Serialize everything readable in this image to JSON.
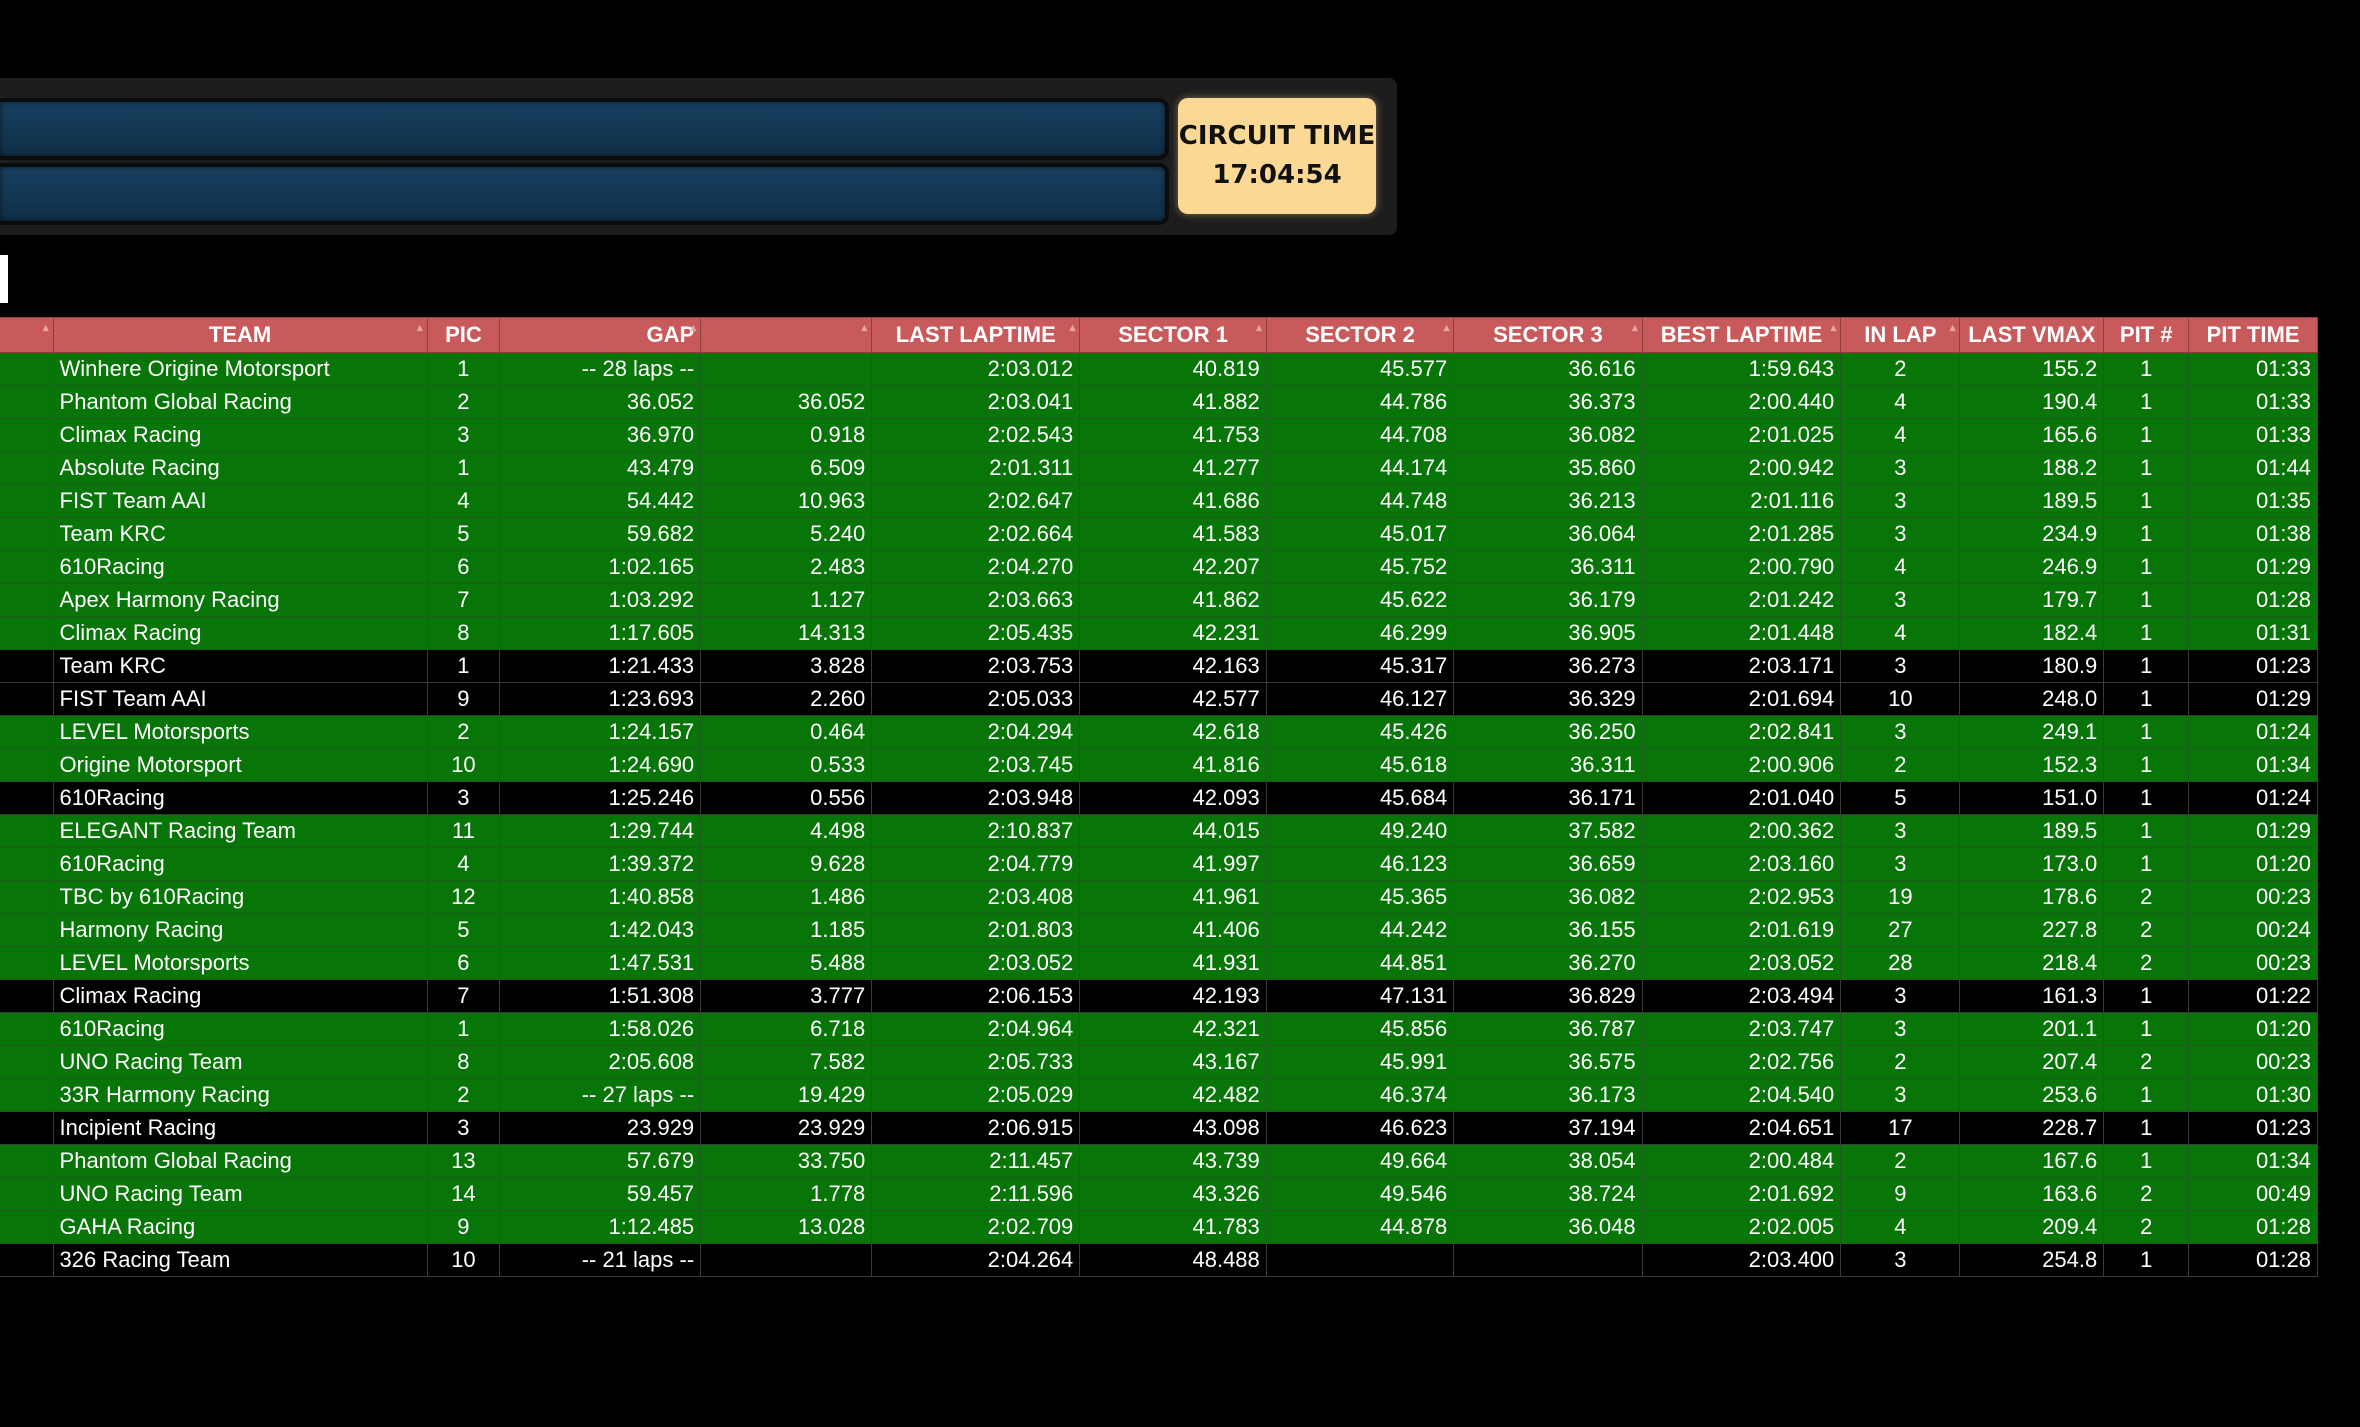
{
  "header": {
    "circuit_time_label": "CIRCUIT TIME",
    "circuit_time_value": "17:04:54"
  },
  "colors": {
    "header_bg": "#c85a5c",
    "row_green": "#087508",
    "row_black": "#000000",
    "fastest_text": "#45e045",
    "circuit_box": "#fcd895",
    "bar_blue": "#17405f"
  },
  "icons": {
    "sort": "sort-icon"
  },
  "table": {
    "columns": [
      "",
      "TEAM",
      "PIC",
      "GAP",
      "",
      "LAST LAPTIME",
      "SECTOR 1",
      "SECTOR 2",
      "SECTOR 3",
      "BEST LAPTIME",
      "IN LAP",
      "LAST VMAX",
      "PIT #",
      "PIT TIME"
    ],
    "rows": [
      {
        "team": "Winhere Origine Motorsport",
        "pic": "1",
        "gap": "-- 28 laps --",
        "int": "",
        "last": "2:03.012",
        "s1": "40.819",
        "s2": "45.577",
        "s3": "36.616",
        "best": "1:59.643",
        "inlap": "2",
        "vmax": "155.2",
        "pits": "1",
        "pittime": "01:33",
        "bg": "green"
      },
      {
        "team": "Phantom Global Racing",
        "pic": "2",
        "gap": "36.052",
        "int": "36.052",
        "last": "2:03.041",
        "s1": "41.882",
        "s2": "44.786",
        "s3": "36.373",
        "best": "2:00.440",
        "inlap": "4",
        "vmax": "190.4",
        "pits": "1",
        "pittime": "01:33",
        "bg": "green"
      },
      {
        "team": "Climax Racing",
        "pic": "3",
        "gap": "36.970",
        "int": "0.918",
        "last": "2:02.543",
        "s1": "41.753",
        "s2": "44.708",
        "s3": "36.082",
        "best": "2:01.025",
        "inlap": "4",
        "vmax": "165.6",
        "pits": "1",
        "pittime": "01:33",
        "bg": "green"
      },
      {
        "team": "Absolute Racing",
        "pic": "1",
        "gap": "43.479",
        "int": "6.509",
        "last": "2:01.311",
        "s1": "41.277",
        "s2": "44.174",
        "s3": "35.860",
        "best": "2:00.942",
        "inlap": "3",
        "vmax": "188.2",
        "pits": "1",
        "pittime": "01:44",
        "bg": "green",
        "hl": [
          "s2"
        ]
      },
      {
        "team": "FIST Team AAI",
        "pic": "4",
        "gap": "54.442",
        "int": "10.963",
        "last": "2:02.647",
        "s1": "41.686",
        "s2": "44.748",
        "s3": "36.213",
        "best": "2:01.116",
        "inlap": "3",
        "vmax": "189.5",
        "pits": "1",
        "pittime": "01:35",
        "bg": "green"
      },
      {
        "team": "Team KRC",
        "pic": "5",
        "gap": "59.682",
        "int": "5.240",
        "last": "2:02.664",
        "s1": "41.583",
        "s2": "45.017",
        "s3": "36.064",
        "best": "2:01.285",
        "inlap": "3",
        "vmax": "234.9",
        "pits": "1",
        "pittime": "01:38",
        "bg": "green"
      },
      {
        "team": "610Racing",
        "pic": "6",
        "gap": "1:02.165",
        "int": "2.483",
        "last": "2:04.270",
        "s1": "42.207",
        "s2": "45.752",
        "s3": "36.311",
        "best": "2:00.790",
        "inlap": "4",
        "vmax": "246.9",
        "pits": "1",
        "pittime": "01:29",
        "bg": "green"
      },
      {
        "team": "Apex Harmony Racing",
        "pic": "7",
        "gap": "1:03.292",
        "int": "1.127",
        "last": "2:03.663",
        "s1": "41.862",
        "s2": "45.622",
        "s3": "36.179",
        "best": "2:01.242",
        "inlap": "3",
        "vmax": "179.7",
        "pits": "1",
        "pittime": "01:28",
        "bg": "green"
      },
      {
        "team": "Climax Racing",
        "pic": "8",
        "gap": "1:17.605",
        "int": "14.313",
        "last": "2:05.435",
        "s1": "42.231",
        "s2": "46.299",
        "s3": "36.905",
        "best": "2:01.448",
        "inlap": "4",
        "vmax": "182.4",
        "pits": "1",
        "pittime": "01:31",
        "bg": "green"
      },
      {
        "team": "Team KRC",
        "pic": "1",
        "gap": "1:21.433",
        "int": "3.828",
        "last": "2:03.753",
        "s1": "42.163",
        "s2": "45.317",
        "s3": "36.273",
        "best": "2:03.171",
        "inlap": "3",
        "vmax": "180.9",
        "pits": "1",
        "pittime": "01:23",
        "bg": "black"
      },
      {
        "team": "FIST Team AAI",
        "pic": "9",
        "gap": "1:23.693",
        "int": "2.260",
        "last": "2:05.033",
        "s1": "42.577",
        "s2": "46.127",
        "s3": "36.329",
        "best": "2:01.694",
        "inlap": "10",
        "vmax": "248.0",
        "pits": "1",
        "pittime": "01:29",
        "bg": "black"
      },
      {
        "team": "LEVEL Motorsports",
        "pic": "2",
        "gap": "1:24.157",
        "int": "0.464",
        "last": "2:04.294",
        "s1": "42.618",
        "s2": "45.426",
        "s3": "36.250",
        "best": "2:02.841",
        "inlap": "3",
        "vmax": "249.1",
        "pits": "1",
        "pittime": "01:24",
        "bg": "green"
      },
      {
        "team": "Origine Motorsport",
        "pic": "10",
        "gap": "1:24.690",
        "int": "0.533",
        "last": "2:03.745",
        "s1": "41.816",
        "s2": "45.618",
        "s3": "36.311",
        "best": "2:00.906",
        "inlap": "2",
        "vmax": "152.3",
        "pits": "1",
        "pittime": "01:34",
        "bg": "green"
      },
      {
        "team": "610Racing",
        "pic": "3",
        "gap": "1:25.246",
        "int": "0.556",
        "last": "2:03.948",
        "s1": "42.093",
        "s2": "45.684",
        "s3": "36.171",
        "best": "2:01.040",
        "inlap": "5",
        "vmax": "151.0",
        "pits": "1",
        "pittime": "01:24",
        "bg": "black"
      },
      {
        "team": "ELEGANT Racing Team",
        "pic": "11",
        "gap": "1:29.744",
        "int": "4.498",
        "last": "2:10.837",
        "s1": "44.015",
        "s2": "49.240",
        "s3": "37.582",
        "best": "2:00.362",
        "inlap": "3",
        "vmax": "189.5",
        "pits": "1",
        "pittime": "01:29",
        "bg": "green"
      },
      {
        "team": "610Racing",
        "pic": "4",
        "gap": "1:39.372",
        "int": "9.628",
        "last": "2:04.779",
        "s1": "41.997",
        "s2": "46.123",
        "s3": "36.659",
        "best": "2:03.160",
        "inlap": "3",
        "vmax": "173.0",
        "pits": "1",
        "pittime": "01:20",
        "bg": "green"
      },
      {
        "team": "TBC by 610Racing",
        "pic": "12",
        "gap": "1:40.858",
        "int": "1.486",
        "last": "2:03.408",
        "s1": "41.961",
        "s2": "45.365",
        "s3": "36.082",
        "best": "2:02.953",
        "inlap": "19",
        "vmax": "178.6",
        "pits": "2",
        "pittime": "00:23",
        "bg": "green"
      },
      {
        "team": "Harmony Racing",
        "pic": "5",
        "gap": "1:42.043",
        "int": "1.185",
        "last": "2:01.803",
        "s1": "41.406",
        "s2": "44.242",
        "s3": "36.155",
        "best": "2:01.619",
        "inlap": "27",
        "vmax": "227.8",
        "pits": "2",
        "pittime": "00:24",
        "bg": "green",
        "hl": [
          "s1",
          "s2"
        ]
      },
      {
        "team": "LEVEL Motorsports",
        "pic": "6",
        "gap": "1:47.531",
        "int": "5.488",
        "last": "2:03.052",
        "s1": "41.931",
        "s2": "44.851",
        "s3": "36.270",
        "best": "2:03.052",
        "inlap": "28",
        "vmax": "218.4",
        "pits": "2",
        "pittime": "00:23",
        "bg": "green",
        "hl": [
          "last"
        ]
      },
      {
        "team": "Climax Racing",
        "pic": "7",
        "gap": "1:51.308",
        "int": "3.777",
        "last": "2:06.153",
        "s1": "42.193",
        "s2": "47.131",
        "s3": "36.829",
        "best": "2:03.494",
        "inlap": "3",
        "vmax": "161.3",
        "pits": "1",
        "pittime": "01:22",
        "bg": "black"
      },
      {
        "team": "610Racing",
        "pic": "1",
        "gap": "1:58.026",
        "int": "6.718",
        "last": "2:04.964",
        "s1": "42.321",
        "s2": "45.856",
        "s3": "36.787",
        "best": "2:03.747",
        "inlap": "3",
        "vmax": "201.1",
        "pits": "1",
        "pittime": "01:20",
        "bg": "green"
      },
      {
        "team": "UNO Racing Team",
        "pic": "8",
        "gap": "2:05.608",
        "int": "7.582",
        "last": "2:05.733",
        "s1": "43.167",
        "s2": "45.991",
        "s3": "36.575",
        "best": "2:02.756",
        "inlap": "2",
        "vmax": "207.4",
        "pits": "2",
        "pittime": "00:23",
        "bg": "green"
      },
      {
        "team": "33R Harmony Racing",
        "pic": "2",
        "gap": "-- 27 laps --",
        "int": "19.429",
        "last": "2:05.029",
        "s1": "42.482",
        "s2": "46.374",
        "s3": "36.173",
        "best": "2:04.540",
        "inlap": "3",
        "vmax": "253.6",
        "pits": "1",
        "pittime": "01:30",
        "bg": "green"
      },
      {
        "team": "Incipient Racing",
        "pic": "3",
        "gap": "23.929",
        "int": "23.929",
        "last": "2:06.915",
        "s1": "43.098",
        "s2": "46.623",
        "s3": "37.194",
        "best": "2:04.651",
        "inlap": "17",
        "vmax": "228.7",
        "pits": "1",
        "pittime": "01:23",
        "bg": "black"
      },
      {
        "team": "Phantom Global Racing",
        "pic": "13",
        "gap": "57.679",
        "int": "33.750",
        "last": "2:11.457",
        "s1": "43.739",
        "s2": "49.664",
        "s3": "38.054",
        "best": "2:00.484",
        "inlap": "2",
        "vmax": "167.6",
        "pits": "1",
        "pittime": "01:34",
        "bg": "green"
      },
      {
        "team": "UNO Racing Team",
        "pic": "14",
        "gap": "59.457",
        "int": "1.778",
        "last": "2:11.596",
        "s1": "43.326",
        "s2": "49.546",
        "s3": "38.724",
        "best": "2:01.692",
        "inlap": "9",
        "vmax": "163.6",
        "pits": "2",
        "pittime": "00:49",
        "bg": "green"
      },
      {
        "team": "GAHA Racing",
        "pic": "9",
        "gap": "1:12.485",
        "int": "13.028",
        "last": "2:02.709",
        "s1": "41.783",
        "s2": "44.878",
        "s3": "36.048",
        "best": "2:02.005",
        "inlap": "4",
        "vmax": "209.4",
        "pits": "2",
        "pittime": "01:28",
        "bg": "green"
      },
      {
        "team": "326 Racing Team",
        "pic": "10",
        "gap": "-- 21 laps --",
        "int": "",
        "last": "2:04.264",
        "s1": "48.488",
        "s2": "",
        "s3": "",
        "best": "2:03.400",
        "inlap": "3",
        "vmax": "254.8",
        "pits": "1",
        "pittime": "01:28",
        "bg": "black"
      }
    ]
  }
}
